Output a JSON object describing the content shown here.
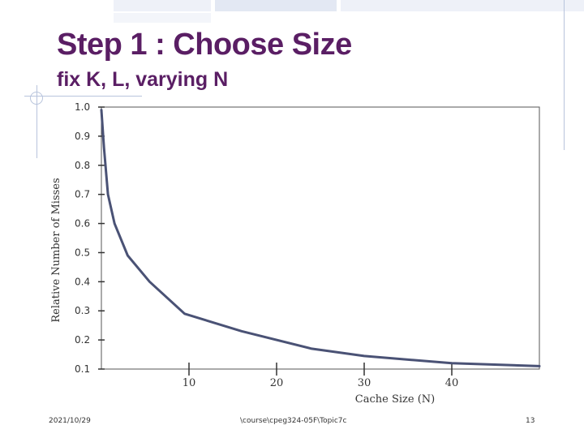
{
  "slide": {
    "title": "Step 1 : Choose Size",
    "subtitle": "fix K, L, varying N"
  },
  "footer": {
    "date": "2021/10/29",
    "path": "\\course\\cpeg324-05F\\Topic7c",
    "page": "13"
  },
  "colors": {
    "title": "#5a1e64",
    "line": "#4a5275",
    "decoration": "#b8c4dc"
  },
  "chart_data": {
    "type": "line",
    "title": "",
    "xlabel": "Cache Size (N)",
    "ylabel": "Relative Number of Misses",
    "xlim": [
      0,
      50
    ],
    "ylim": [
      0.1,
      1.0
    ],
    "x_ticks": [
      10,
      20,
      30,
      40
    ],
    "y_ticks": [
      "1.0",
      "0.9",
      "0.8",
      "0.7",
      "0.6",
      "0.5",
      "0.4",
      "0.3",
      "0.2",
      "0.1"
    ],
    "grid": false,
    "series": [
      {
        "x": [
          0,
          0.3,
          0.75,
          1.5,
          3,
          5.5,
          9.5,
          16,
          24,
          30,
          40,
          50
        ],
        "y": [
          0.99,
          0.86,
          0.7,
          0.6,
          0.49,
          0.4,
          0.29,
          0.23,
          0.17,
          0.145,
          0.12,
          0.11
        ]
      }
    ]
  }
}
